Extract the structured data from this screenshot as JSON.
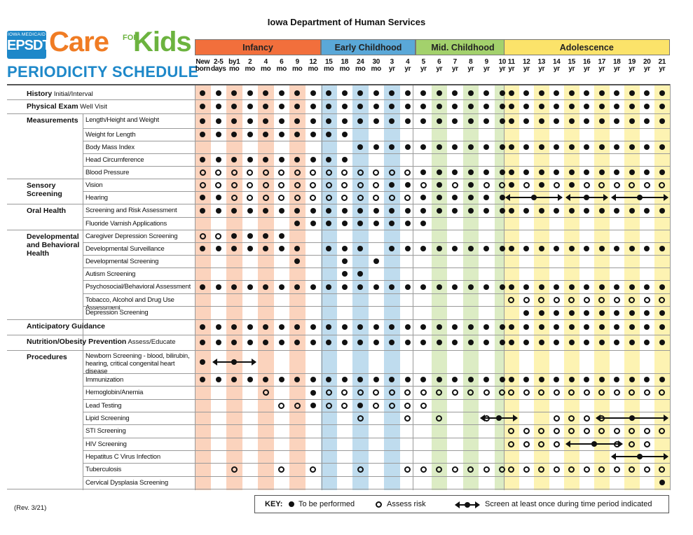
{
  "title": "Iowa Department of Human Services",
  "logo": {
    "badge_top": "IOWA MEDICAID",
    "badge_main": "EPSDT",
    "care": "Care",
    "for": "FOR",
    "kids": "Kids",
    "subtitle": "PERIODICITY SCHEDULE"
  },
  "colors": {
    "infancy": "#f26f3c",
    "infancy_light": "#fbd3bd",
    "early": "#5aa8d8",
    "early_light": "#bfdcee",
    "mid": "#a3d16c",
    "mid_light": "#dcecc4",
    "adol": "#fbe36a",
    "adol_light": "#fdf3b2"
  },
  "groups": [
    {
      "label": "Infancy",
      "cols": [
        0,
        7
      ],
      "color": "infancy"
    },
    {
      "label": "Early Childhood",
      "cols": [
        8,
        13
      ],
      "color": "early"
    },
    {
      "label": "Mid. Childhood",
      "cols": [
        14,
        19
      ],
      "color": "mid"
    },
    {
      "label": "Adolescence",
      "cols": [
        20,
        30
      ],
      "color": "adol"
    }
  ],
  "ages": [
    [
      "New",
      "born"
    ],
    [
      "2-5",
      "days"
    ],
    [
      "by1",
      "mo"
    ],
    [
      "2",
      "mo"
    ],
    [
      "4",
      "mo"
    ],
    [
      "6",
      "mo"
    ],
    [
      "9",
      "mo"
    ],
    [
      "12",
      "mo"
    ],
    [
      "15",
      "mo"
    ],
    [
      "18",
      "mo"
    ],
    [
      "24",
      "mo"
    ],
    [
      "30",
      "mo"
    ],
    [
      "3",
      "yr"
    ],
    [
      "4",
      "yr"
    ],
    [
      "5",
      "yr"
    ],
    [
      "6",
      "yr"
    ],
    [
      "7",
      "yr"
    ],
    [
      "8",
      "yr"
    ],
    [
      "9",
      "yr"
    ],
    [
      "10",
      "yr"
    ],
    [
      "11",
      "yr"
    ],
    [
      "12",
      "yr"
    ],
    [
      "13",
      "yr"
    ],
    [
      "14",
      "yr"
    ],
    [
      "15",
      "yr"
    ],
    [
      "16",
      "yr"
    ],
    [
      "17",
      "yr"
    ],
    [
      "18",
      "yr"
    ],
    [
      "19",
      "yr"
    ],
    [
      "20",
      "yr"
    ],
    [
      "21",
      "yr"
    ]
  ],
  "shaded_columns": [
    0,
    2,
    4,
    6,
    8,
    10,
    12,
    15,
    17,
    19,
    20,
    22,
    24,
    26,
    28,
    30
  ],
  "rows": [
    {
      "cat": "History",
      "note": "Initial/Interval",
      "marks": "ddddddddddddddddddddddddddddddd"
    },
    {
      "cat": "Physical Exam",
      "note": "Well Visit",
      "marks": "ddddddddddddddddddddddddddddddd"
    },
    {
      "cat": "Measurements",
      "sub": "Length/Height and Weight",
      "marks": "ddddddddddddddddddddddddddddddd"
    },
    {
      "sub": "Weight for Length",
      "marks": "dddddddddd....................."
    },
    {
      "sub": "Body Mass Index",
      "marks": "..........ddddddddddddddddddddd"
    },
    {
      "sub": "Head Circumference",
      "marks": "dddddddddd....................."
    },
    {
      "sub": "Blood Pressure",
      "marks": "rrrrrrrrrrrrrrddddddddddddddddd"
    },
    {
      "cat": "Sensory Screening",
      "sub": "Vision",
      "marks": "rrrrrrrrrrrrddrdrdrrdrdrdrrrrrr"
    },
    {
      "sub": "Hearing",
      "marks": "ddrrrrrrrrrrrrdddddd",
      "arrows": [
        [
          20,
          23
        ],
        [
          24,
          26
        ],
        [
          27,
          30
        ]
      ]
    },
    {
      "cat": "Oral Health",
      "sub": "Screening and Risk Assessment",
      "marks": "ddddddddddddddddddddddddddddddd"
    },
    {
      "sub": "Fluoride Varnish Applications",
      "marks": "......ddddddddd................"
    },
    {
      "cat": "Developmental and Behavioral Health",
      "sub": "Caregiver Depression Screening",
      "marks": "rrdddd........................."
    },
    {
      "sub": "Developmental Surveillance",
      "marks": "ddddddd.ddd.ddddddddddddddddddd"
    },
    {
      "sub": "Developmental Screening",
      "marks": "......d..d.d..................."
    },
    {
      "sub": "Autism Screening",
      "marks": ".........dd...................."
    },
    {
      "sub": "Psychosocial/Behavioral Assessment",
      "marks": "ddddddddddddddddddddddddddddddd"
    },
    {
      "sub": "Tobacco, Alcohol and Drug Use Assessment",
      "marks": "....................rrrrrrrrrrr"
    },
    {
      "sub": "Depression Screening",
      "marks": ".....................dddddddddd"
    },
    {
      "cat": "Anticipatory Guidance",
      "marks": "ddddddddddddddddddddddddddddddd"
    },
    {
      "cat": "Nutrition/Obesity Prevention",
      "note": "Assess/Educate",
      "marks": "ddddddddddddddddddddddddddddddd"
    },
    {
      "cat": "Procedures",
      "sub": "Newborn Screening - blood, bilirubin, hearing, critical congenital heart disease",
      "marks": "d..............................",
      "arrows": [
        [
          1,
          3
        ]
      ]
    },
    {
      "sub": "Immunization",
      "marks": "ddddddddddddddddddddddddddddddd"
    },
    {
      "sub": "Hemoglobin/Anemia",
      "marks": "....r..drrrrrrrrrrrrrrrrrrrrrrr"
    },
    {
      "sub": "Lead Testing",
      "marks": ".....rrdrrdrrrr................"
    },
    {
      "sub": "Lipid Screening",
      "marks": "..........r..r.r..r....rrrr",
      "arrows": [
        [
          18,
          20
        ],
        [
          26,
          30
        ]
      ]
    },
    {
      "sub": "STI Screening",
      "marks": "....................rrrrrrrrrrr"
    },
    {
      "sub": "HIV Screening",
      "marks": "....................rrrr...rrr",
      "arrows": [
        [
          24,
          27
        ]
      ]
    },
    {
      "sub": "Hepatitus C Virus Infection",
      "marks": "",
      "arrows": [
        [
          27,
          30
        ]
      ]
    },
    {
      "sub": "Tuberculosis",
      "marks": "..r..r.r..r..rrrrrrrrrrrrrrrrrr"
    },
    {
      "sub": "Cervical Dysplasia Screening",
      "marks": "..............................d"
    }
  ],
  "key": {
    "label": "KEY:",
    "perform": "To be performed",
    "assess": "Assess risk",
    "screen": "Screen at least once during time period indicated"
  },
  "revision": "(Rev. 3/21)"
}
